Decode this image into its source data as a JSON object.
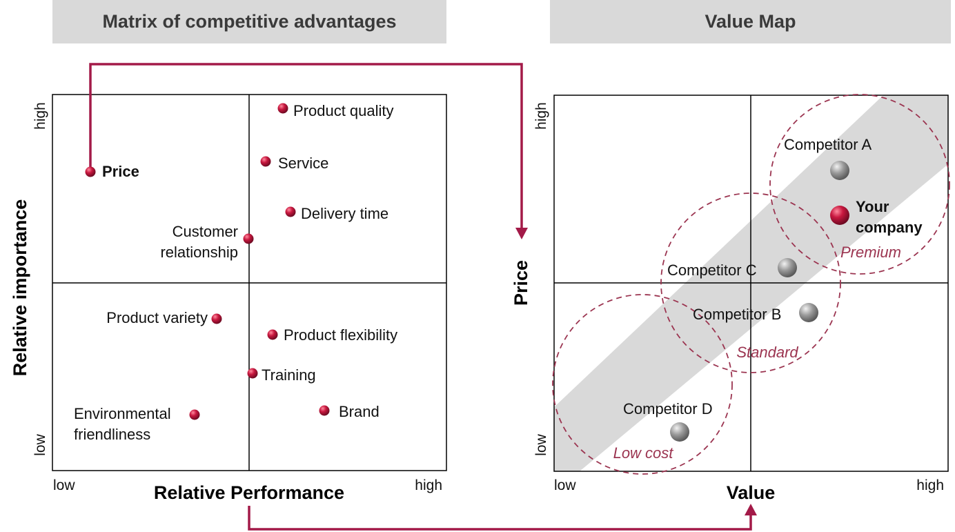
{
  "left_panel": {
    "title": "Matrix of competitive advantages",
    "y_axis_title": "Relative importance",
    "x_axis_title": "Relative Performance",
    "y_high": "high",
    "y_low": "low",
    "x_low": "low",
    "x_high": "high",
    "points": [
      {
        "label": [
          "Product quality"
        ],
        "bold": false
      },
      {
        "label": [
          "Price"
        ],
        "bold": true
      },
      {
        "label": [
          "Service"
        ],
        "bold": false
      },
      {
        "label": [
          "Delivery time"
        ],
        "bold": false
      },
      {
        "label": [
          "Customer",
          "relationship"
        ],
        "bold": false
      },
      {
        "label": [
          "Product variety"
        ],
        "bold": false
      },
      {
        "label": [
          "Product flexibility"
        ],
        "bold": false
      },
      {
        "label": [
          "Training"
        ],
        "bold": false
      },
      {
        "label": [
          "Environmental",
          "friendliness"
        ],
        "bold": false
      },
      {
        "label": [
          "Brand"
        ],
        "bold": false
      }
    ]
  },
  "right_panel": {
    "title": "Value Map",
    "y_axis_title": "Price",
    "x_axis_title": "Value",
    "y_high": "high",
    "y_low": "low",
    "x_low": "low",
    "x_high": "high",
    "segments": [
      "Premium",
      "Standard",
      "Low cost"
    ],
    "points": [
      {
        "label": [
          "Competitor A"
        ],
        "highlight": false
      },
      {
        "label": [
          "Your",
          "company"
        ],
        "highlight": true
      },
      {
        "label": [
          "Competitor C"
        ],
        "highlight": false
      },
      {
        "label": [
          "Competitor B"
        ],
        "highlight": false
      },
      {
        "label": [
          "Competitor D"
        ],
        "highlight": false
      }
    ]
  },
  "colors": {
    "accent": "#a3123a",
    "arrow": "#a31a48",
    "header_bg": "#d9d9d9",
    "band": "#d9d9d9",
    "circle": "#9b3450",
    "grey_dot": "#8c8c8c"
  }
}
